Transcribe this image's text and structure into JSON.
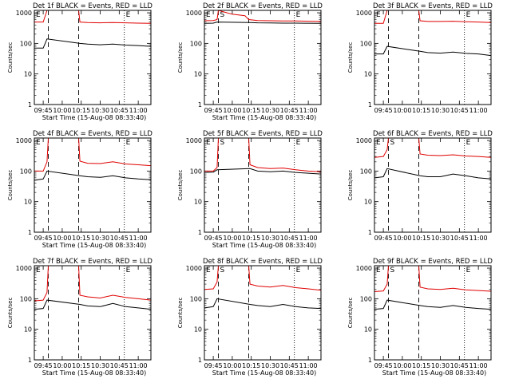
{
  "figure": {
    "x_start_label": "Start Time (15-Aug-08 08:33:40)",
    "y_axis_label": "Counts/sec",
    "x_ticks": [
      "09:45",
      "10:00",
      "10:15",
      "10:30",
      "10:45",
      "11:00"
    ],
    "y_ticks": [
      "1",
      "10",
      "100",
      "1000"
    ],
    "colors": {
      "events": "#000000",
      "lld": "#e00000",
      "background": "#ffffff"
    }
  },
  "chart_data": [
    {
      "type": "line",
      "title": "Det 1f BLACK = Events, RED = LLD",
      "xlabel": "Start Time (15-Aug-08 08:33:40)",
      "ylabel": "Counts/sec",
      "x_ticks": [
        "09:45",
        "10:00",
        "10:15",
        "10:30",
        "10:45",
        "11:00"
      ],
      "ylim": [
        1,
        1200
      ],
      "y_scale": "log",
      "markers": [
        {
          "label": "E",
          "time": "09:38",
          "style": "dashed"
        },
        {
          "label": "",
          "time": "09:49",
          "style": "dashed"
        },
        {
          "label": "",
          "time": "10:13",
          "style": "dashed"
        },
        {
          "label": "E",
          "time": "10:49",
          "style": "dotted"
        }
      ],
      "series": [
        {
          "name": "LLD",
          "color": "#e00000",
          "x": [
            "09:38",
            "09:45",
            "09:48",
            "09:49",
            "10:13",
            "10:14",
            "10:20",
            "10:30",
            "10:40",
            "10:50",
            "11:00",
            "11:10"
          ],
          "values": [
            500,
            500,
            1200,
            1200,
            1200,
            500,
            480,
            470,
            480,
            470,
            460,
            450
          ]
        },
        {
          "name": "Events",
          "color": "#000000",
          "x": [
            "09:38",
            "09:45",
            "09:48",
            "10:14",
            "10:20",
            "10:30",
            "10:40",
            "10:50",
            "11:00",
            "11:10"
          ],
          "values": [
            70,
            70,
            140,
            100,
            95,
            90,
            95,
            88,
            85,
            80
          ]
        }
      ]
    },
    {
      "type": "line",
      "title": "Det 2f BLACK = Events, RED = LLD",
      "xlabel": "Start Time (15-Aug-08 08:33:40)",
      "ylabel": "Counts/sec",
      "x_ticks": [
        "09:45",
        "10:00",
        "10:15",
        "10:30",
        "10:45",
        "11:00"
      ],
      "ylim": [
        1,
        1200
      ],
      "y_scale": "log",
      "markers": [
        {
          "label": "E",
          "time": "09:38",
          "style": "dashed"
        },
        {
          "label": "S",
          "time": "09:49",
          "style": "dashed"
        },
        {
          "label": "",
          "time": "10:13",
          "style": "dashed"
        },
        {
          "label": "E",
          "time": "10:49",
          "style": "dotted"
        }
      ],
      "series": [
        {
          "name": "LLD",
          "color": "#e00000",
          "x": [
            "09:38",
            "09:45",
            "09:48",
            "09:49",
            "09:52",
            "10:00",
            "10:10",
            "10:13",
            "10:20",
            "10:30",
            "10:40",
            "10:50",
            "11:00",
            "11:10"
          ],
          "values": [
            550,
            560,
            600,
            1200,
            1100,
            900,
            800,
            600,
            560,
            550,
            540,
            540,
            530,
            520
          ]
        },
        {
          "name": "Events",
          "color": "#000000",
          "x": [
            "09:38",
            "09:45",
            "09:48",
            "10:14",
            "10:20",
            "10:30",
            "10:40",
            "10:50",
            "11:00",
            "11:10"
          ],
          "values": [
            450,
            460,
            500,
            480,
            470,
            465,
            460,
            460,
            455,
            450
          ]
        }
      ]
    },
    {
      "type": "line",
      "title": "Det 3f BLACK = Events, RED = LLD",
      "xlabel": "",
      "ylabel": "Counts/sec",
      "x_ticks": [
        "09:45",
        "10:00",
        "10:15",
        "10:30",
        "10:45",
        "11:00"
      ],
      "ylim": [
        1,
        1200
      ],
      "y_scale": "log",
      "markers": [
        {
          "label": "E",
          "time": "09:38",
          "style": "dashed"
        },
        {
          "label": "",
          "time": "09:49",
          "style": "dashed"
        },
        {
          "label": "",
          "time": "10:13",
          "style": "dashed"
        },
        {
          "label": "E",
          "time": "10:49",
          "style": "dotted"
        }
      ],
      "series": [
        {
          "name": "LLD",
          "color": "#e00000",
          "x": [
            "09:38",
            "09:45",
            "09:48",
            "09:49",
            "10:13",
            "10:14",
            "10:20",
            "10:30",
            "10:40",
            "10:50",
            "11:00",
            "11:10"
          ],
          "values": [
            450,
            450,
            1200,
            1200,
            1200,
            550,
            520,
            520,
            530,
            510,
            500,
            480
          ]
        },
        {
          "name": "Events",
          "color": "#000000",
          "x": [
            "09:38",
            "09:45",
            "09:48",
            "10:14",
            "10:20",
            "10:30",
            "10:40",
            "10:50",
            "11:00",
            "11:10"
          ],
          "values": [
            45,
            45,
            80,
            55,
            50,
            48,
            52,
            47,
            45,
            40
          ]
        }
      ]
    },
    {
      "type": "line",
      "title": "Det 4f BLACK = Events, RED = LLD",
      "xlabel": "Start Time (15-Aug-08 08:33:40)",
      "ylabel": "Counts/sec",
      "x_ticks": [
        "09:45",
        "10:00",
        "10:15",
        "10:30",
        "10:45",
        "11:00"
      ],
      "ylim": [
        1,
        1200
      ],
      "y_scale": "log",
      "markers": [
        {
          "label": "E",
          "time": "09:38",
          "style": "dashed"
        },
        {
          "label": "",
          "time": "09:49",
          "style": "dashed"
        },
        {
          "label": "",
          "time": "10:13",
          "style": "dashed"
        },
        {
          "label": "E",
          "time": "10:49",
          "style": "dotted"
        }
      ],
      "series": [
        {
          "name": "LLD",
          "color": "#e00000",
          "x": [
            "09:38",
            "09:45",
            "09:48",
            "09:49",
            "10:13",
            "10:14",
            "10:20",
            "10:30",
            "10:40",
            "10:50",
            "11:00",
            "11:10"
          ],
          "values": [
            100,
            100,
            200,
            1200,
            1200,
            210,
            180,
            175,
            200,
            170,
            160,
            150
          ]
        },
        {
          "name": "Events",
          "color": "#000000",
          "x": [
            "09:38",
            "09:45",
            "09:48",
            "10:14",
            "10:20",
            "10:30",
            "10:40",
            "10:50",
            "11:00",
            "11:10"
          ],
          "values": [
            50,
            55,
            100,
            70,
            65,
            62,
            70,
            60,
            55,
            52
          ]
        }
      ]
    },
    {
      "type": "line",
      "title": "Det 5f BLACK = Events, RED = LLD",
      "xlabel": "Start Time (15-Aug-08 08:33:40)",
      "ylabel": "Counts/sec",
      "x_ticks": [
        "09:45",
        "10:00",
        "10:15",
        "10:30",
        "10:45",
        "11:00"
      ],
      "ylim": [
        1,
        1200
      ],
      "y_scale": "log",
      "markers": [
        {
          "label": "E",
          "time": "09:38",
          "style": "dashed"
        },
        {
          "label": "S",
          "time": "09:49",
          "style": "dashed"
        },
        {
          "label": "",
          "time": "10:13",
          "style": "dashed"
        },
        {
          "label": "E",
          "time": "10:49",
          "style": "dotted"
        }
      ],
      "series": [
        {
          "name": "LLD",
          "color": "#e00000",
          "x": [
            "09:38",
            "09:45",
            "09:48",
            "09:49",
            "10:13",
            "10:14",
            "10:20",
            "10:30",
            "10:40",
            "10:50",
            "11:00",
            "11:10"
          ],
          "values": [
            100,
            100,
            130,
            1200,
            1200,
            160,
            130,
            120,
            125,
            110,
            100,
            95
          ]
        },
        {
          "name": "Events",
          "color": "#000000",
          "x": [
            "09:38",
            "09:45",
            "09:48",
            "10:14",
            "10:20",
            "10:30",
            "10:40",
            "10:50",
            "11:00",
            "11:10"
          ],
          "values": [
            90,
            92,
            110,
            120,
            100,
            95,
            100,
            90,
            85,
            80
          ]
        }
      ]
    },
    {
      "type": "line",
      "title": "Det 6f BLACK = Events, RED = LLD",
      "xlabel": "",
      "ylabel": "Counts/sec",
      "x_ticks": [
        "09:45",
        "10:00",
        "10:15",
        "10:30",
        "10:45",
        "11:00"
      ],
      "ylim": [
        1,
        1200
      ],
      "y_scale": "log",
      "markers": [
        {
          "label": "E",
          "time": "09:38",
          "style": "dashed"
        },
        {
          "label": "S",
          "time": "09:49",
          "style": "dashed"
        },
        {
          "label": "",
          "time": "10:13",
          "style": "dashed"
        },
        {
          "label": "E",
          "time": "10:49",
          "style": "dotted"
        }
      ],
      "series": [
        {
          "name": "LLD",
          "color": "#e00000",
          "x": [
            "09:38",
            "09:45",
            "09:48",
            "09:49",
            "10:13",
            "10:14",
            "10:20",
            "10:30",
            "10:40",
            "10:50",
            "11:00",
            "11:10"
          ],
          "values": [
            280,
            300,
            500,
            1200,
            1200,
            360,
            330,
            320,
            340,
            310,
            300,
            280
          ]
        },
        {
          "name": "Events",
          "color": "#000000",
          "x": [
            "09:38",
            "09:45",
            "09:48",
            "10:14",
            "10:20",
            "10:30",
            "10:40",
            "10:50",
            "11:00",
            "11:10"
          ],
          "values": [
            60,
            65,
            120,
            70,
            65,
            65,
            80,
            70,
            60,
            55
          ]
        }
      ]
    },
    {
      "type": "line",
      "title": "Det 7f BLACK = Events, RED = LLD",
      "xlabel": "Start Time (15-Aug-08 08:33:40)",
      "ylabel": "Counts/sec",
      "x_ticks": [
        "09:45",
        "10:00",
        "10:15",
        "10:30",
        "10:45",
        "11:00"
      ],
      "ylim": [
        1,
        1200
      ],
      "y_scale": "log",
      "markers": [
        {
          "label": "E",
          "time": "09:38",
          "style": "dashed"
        },
        {
          "label": "",
          "time": "09:49",
          "style": "dashed"
        },
        {
          "label": "",
          "time": "10:13",
          "style": "dashed"
        },
        {
          "label": "E",
          "time": "10:49",
          "style": "dotted"
        }
      ],
      "series": [
        {
          "name": "LLD",
          "color": "#e00000",
          "x": [
            "09:38",
            "09:45",
            "09:48",
            "09:49",
            "10:13",
            "10:14",
            "10:20",
            "10:30",
            "10:40",
            "10:50",
            "11:00",
            "11:10"
          ],
          "values": [
            85,
            90,
            160,
            1200,
            1200,
            130,
            115,
            105,
            130,
            110,
            100,
            90
          ]
        },
        {
          "name": "Events",
          "color": "#000000",
          "x": [
            "09:38",
            "09:45",
            "09:48",
            "10:14",
            "10:20",
            "10:30",
            "10:40",
            "10:50",
            "11:00",
            "11:10"
          ],
          "values": [
            45,
            48,
            90,
            65,
            58,
            55,
            70,
            55,
            50,
            45
          ]
        }
      ]
    },
    {
      "type": "line",
      "title": "Det 8f BLACK = Events, RED = LLD",
      "xlabel": "Start Time (15-Aug-08 08:33:40)",
      "ylabel": "Counts/sec",
      "x_ticks": [
        "09:45",
        "10:00",
        "10:15",
        "10:30",
        "10:45",
        "11:00"
      ],
      "ylim": [
        1,
        1200
      ],
      "y_scale": "log",
      "markers": [
        {
          "label": "E",
          "time": "09:38",
          "style": "dashed"
        },
        {
          "label": "S",
          "time": "09:49",
          "style": "dashed"
        },
        {
          "label": "",
          "time": "10:13",
          "style": "dashed"
        },
        {
          "label": "E",
          "time": "10:49",
          "style": "dotted"
        }
      ],
      "series": [
        {
          "name": "LLD",
          "color": "#e00000",
          "x": [
            "09:38",
            "09:45",
            "09:48",
            "09:49",
            "10:13",
            "10:14",
            "10:20",
            "10:30",
            "10:40",
            "10:50",
            "11:00",
            "11:10"
          ],
          "values": [
            200,
            210,
            350,
            1200,
            1200,
            300,
            260,
            240,
            270,
            230,
            210,
            190
          ]
        },
        {
          "name": "Events",
          "color": "#000000",
          "x": [
            "09:38",
            "09:45",
            "09:48",
            "10:14",
            "10:20",
            "10:30",
            "10:40",
            "10:50",
            "11:00",
            "11:10"
          ],
          "values": [
            50,
            55,
            100,
            65,
            60,
            55,
            65,
            55,
            50,
            48
          ]
        }
      ]
    },
    {
      "type": "line",
      "title": "Det 9f BLACK = Events, RED = LLD",
      "xlabel": "Start Time (15-Aug-08 08:33:40)",
      "ylabel": "Counts/sec",
      "x_ticks": [
        "09:45",
        "10:00",
        "10:15",
        "10:30",
        "10:45",
        "11:00"
      ],
      "ylim": [
        1,
        1200
      ],
      "y_scale": "log",
      "markers": [
        {
          "label": "E",
          "time": "09:38",
          "style": "dashed"
        },
        {
          "label": "S",
          "time": "09:49",
          "style": "dashed"
        },
        {
          "label": "",
          "time": "10:13",
          "style": "dashed"
        },
        {
          "label": "E",
          "time": "10:49",
          "style": "dotted"
        }
      ],
      "series": [
        {
          "name": "LLD",
          "color": "#e00000",
          "x": [
            "09:38",
            "09:45",
            "09:48",
            "09:49",
            "10:13",
            "10:14",
            "10:20",
            "10:30",
            "10:40",
            "10:50",
            "11:00",
            "11:10"
          ],
          "values": [
            170,
            180,
            300,
            1200,
            1200,
            240,
            210,
            200,
            220,
            195,
            185,
            175
          ]
        },
        {
          "name": "Events",
          "color": "#000000",
          "x": [
            "09:38",
            "09:45",
            "09:48",
            "10:14",
            "10:20",
            "10:30",
            "10:40",
            "10:50",
            "11:00",
            "11:10"
          ],
          "values": [
            45,
            48,
            90,
            60,
            55,
            52,
            60,
            52,
            48,
            45
          ]
        }
      ]
    }
  ]
}
